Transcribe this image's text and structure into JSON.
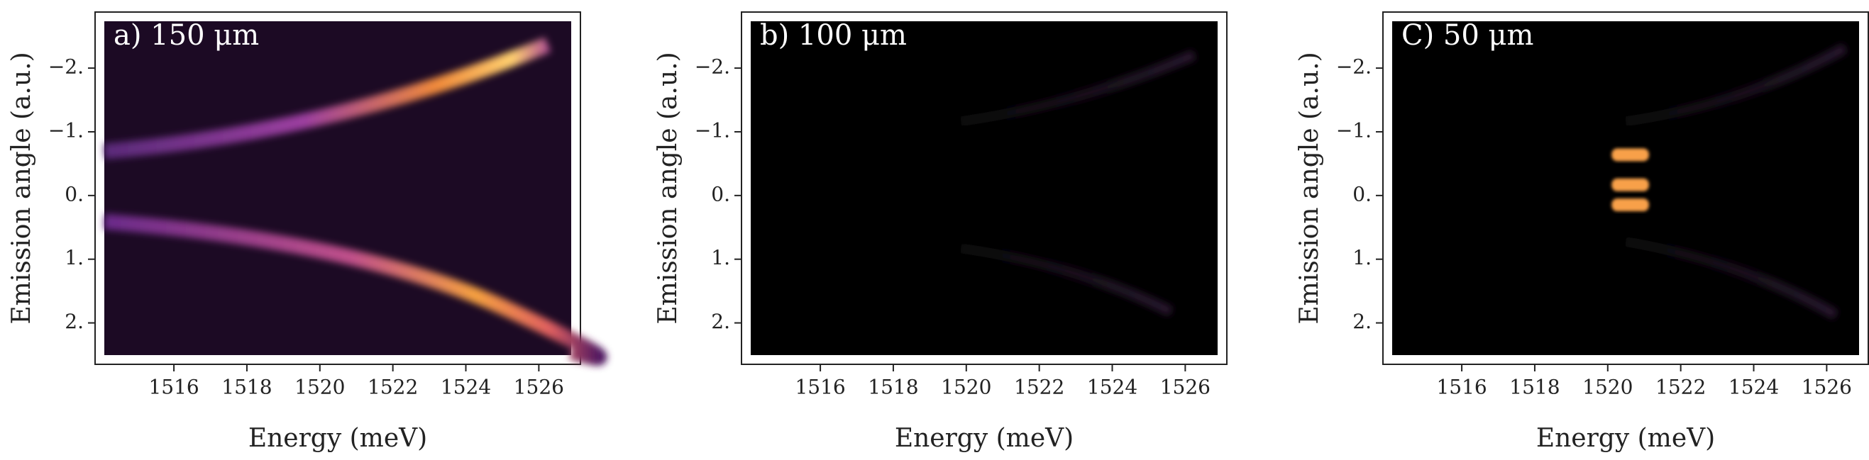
{
  "chart_data": [
    {
      "type": "image",
      "title": "a)  150 μm",
      "x_label": "Energy (meV)",
      "y_label": "Emission angle (a.u.)",
      "xlim": [
        1513.84,
        1527.14
      ],
      "xticks": [
        1516,
        1518,
        1520,
        1522,
        1524,
        1526
      ],
      "ylim": [
        -2.88,
        2.65
      ],
      "y_inverted": true,
      "yticks": [
        {
          "value": -2,
          "label": "−2."
        },
        {
          "value": -1,
          "label": "−1."
        },
        {
          "value": 0,
          "label": "0."
        },
        {
          "value": 1,
          "label": "1."
        },
        {
          "value": 2,
          "label": "2."
        }
      ]
    },
    {
      "type": "image",
      "title": "b)  100 μm",
      "x_label": "Energy (meV)",
      "y_label": "Emission angle (a.u.)",
      "xlim": [
        1513.84,
        1527.14
      ],
      "xticks": [
        1516,
        1518,
        1520,
        1522,
        1524,
        1526
      ],
      "ylim": [
        -2.88,
        2.65
      ],
      "y_inverted": true,
      "yticks": [
        {
          "value": -2,
          "label": "−2."
        },
        {
          "value": -1,
          "label": "−1."
        },
        {
          "value": 0,
          "label": "0."
        },
        {
          "value": 1,
          "label": "1."
        },
        {
          "value": 2,
          "label": "2."
        }
      ]
    },
    {
      "type": "image",
      "title": "C)  50 μm",
      "x_label": "Energy (meV)",
      "y_label": "Emission angle (a.u.)",
      "xlim": [
        1513.84,
        1527.14
      ],
      "xticks": [
        1516,
        1518,
        1520,
        1522,
        1524,
        1526
      ],
      "ylim": [
        -2.88,
        2.65
      ],
      "y_inverted": true,
      "yticks": [
        {
          "value": -2,
          "label": "−2."
        },
        {
          "value": -1,
          "label": "−1."
        },
        {
          "value": 0,
          "label": "0."
        },
        {
          "value": 1,
          "label": "1."
        },
        {
          "value": 2,
          "label": "2."
        }
      ]
    }
  ]
}
